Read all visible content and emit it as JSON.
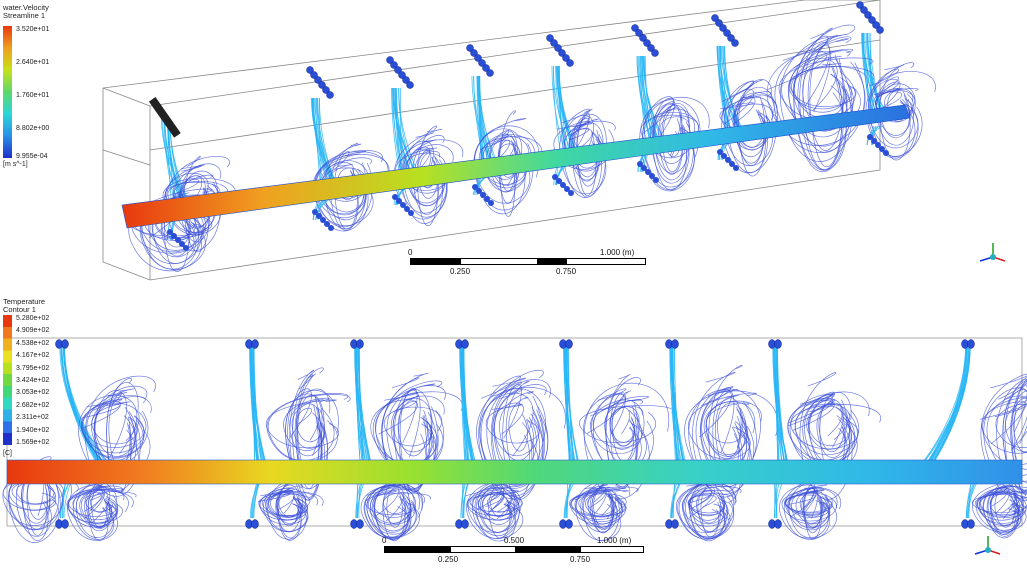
{
  "top_view": {
    "legend": {
      "title": "water.Velocity",
      "subtitle": "Streamline 1",
      "ticks": [
        "3.520e+01",
        "2.640e+01",
        "1.760e+01",
        "8.802e+00",
        "9.955e-04"
      ],
      "unit": "[m s^-1]",
      "colors": [
        "#e8380f",
        "#f0a020",
        "#c8e01c",
        "#5ed86a",
        "#2bd5d8",
        "#2a90e8",
        "#2030c8"
      ]
    },
    "scale": {
      "labels_top": [
        "0",
        "1.000  (m)"
      ],
      "labels_bottom": [
        "0.250",
        "0.750"
      ]
    }
  },
  "bottom_view": {
    "legend": {
      "title": "Temperature",
      "subtitle": "Contour 1",
      "ticks": [
        "5.280e+02",
        "4.909e+02",
        "4.538e+02",
        "4.167e+02",
        "3.795e+02",
        "3.424e+02",
        "3.053e+02",
        "2.682e+02",
        "2.311e+02",
        "1.940e+02",
        "1.569e+02"
      ],
      "unit": "[C]",
      "colors": [
        "#e8380f",
        "#f07820",
        "#f0b020",
        "#e8e020",
        "#b8e020",
        "#70d840",
        "#40d878",
        "#30d8c0",
        "#30b0e8",
        "#3070e8",
        "#2030c8"
      ]
    },
    "scale": {
      "labels_top": [
        "0",
        "0.500",
        "1.000  (m)"
      ],
      "labels_bottom": [
        "0.250",
        "0.750"
      ]
    }
  },
  "colors": {
    "hot": "#e8380f",
    "streamline": "#3b4fd8",
    "jet": "#29b6f6",
    "nozzle": "#2a4fd6",
    "outline": "#8a8a8a"
  }
}
